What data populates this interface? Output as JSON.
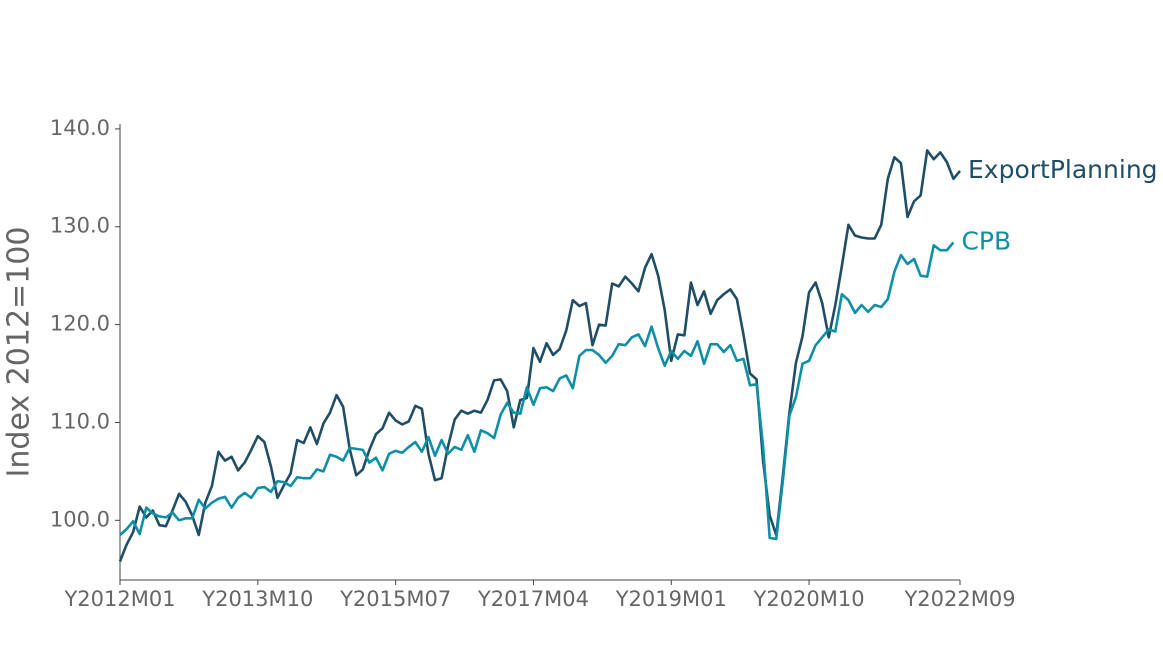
{
  "chart_data": {
    "type": "line",
    "y_label": "Index 2012=100",
    "categories": [
      "Y2012M01",
      null,
      null,
      null,
      null,
      null,
      null,
      null,
      null,
      null,
      null,
      null,
      null,
      null,
      null,
      null,
      null,
      null,
      null,
      null,
      null,
      "Y2013M10",
      null,
      null,
      null,
      null,
      null,
      null,
      null,
      null,
      null,
      null,
      null,
      null,
      null,
      null,
      null,
      null,
      null,
      null,
      null,
      null,
      "Y2015M07",
      null,
      null,
      null,
      null,
      null,
      null,
      null,
      null,
      null,
      null,
      null,
      null,
      null,
      null,
      null,
      null,
      null,
      null,
      null,
      null,
      "Y2017M04",
      null,
      null,
      null,
      null,
      null,
      null,
      null,
      null,
      null,
      null,
      null,
      null,
      null,
      null,
      null,
      null,
      null,
      null,
      null,
      null,
      "Y2019M01",
      null,
      null,
      null,
      null,
      null,
      null,
      null,
      null,
      null,
      null,
      null,
      null,
      null,
      null,
      null,
      null,
      null,
      null,
      null,
      null,
      "Y2020M10",
      null,
      null,
      null,
      null,
      null,
      null,
      null,
      null,
      null,
      null,
      null,
      null,
      null,
      null,
      null,
      null,
      null,
      null,
      null,
      null,
      null,
      null,
      "Y2022M09"
    ],
    "series": [
      {
        "name": "ExportPlanning",
        "color": "#1f4e66",
        "values": [
          95.8,
          97.5,
          98.8,
          101.4,
          100.3,
          101.0,
          99.5,
          99.4,
          101.0,
          102.7,
          101.9,
          100.5,
          98.5,
          101.8,
          103.5,
          107.0,
          106.1,
          106.5,
          105.1,
          105.9,
          107.2,
          108.6,
          108.0,
          105.5,
          102.3,
          103.6,
          104.8,
          108.2,
          107.9,
          109.5,
          107.8,
          109.9,
          111.0,
          112.8,
          111.6,
          107.3,
          104.6,
          105.2,
          107.2,
          108.8,
          109.4,
          111.0,
          110.2,
          109.8,
          110.1,
          111.7,
          111.4,
          106.8,
          104.1,
          104.3,
          107.6,
          110.3,
          111.2,
          110.9,
          111.2,
          111.0,
          112.3,
          114.3,
          114.4,
          113.2,
          109.5,
          112.3,
          112.5,
          117.6,
          116.2,
          118.1,
          116.9,
          117.5,
          119.4,
          122.5,
          121.9,
          122.2,
          117.9,
          120.0,
          119.9,
          124.2,
          123.9,
          124.9,
          124.2,
          123.4,
          125.8,
          127.2,
          125.0,
          121.5,
          116.3,
          119.0,
          118.9,
          124.3,
          122.0,
          123.4,
          121.1,
          122.5,
          123.1,
          123.6,
          122.6,
          119.0,
          115.0,
          114.4,
          106.0,
          100.5,
          98.5,
          104.5,
          111.0,
          116.1,
          118.8,
          123.3,
          124.3,
          122.2,
          118.7,
          122.0,
          126.0,
          130.2,
          129.1,
          128.9,
          128.8,
          128.8,
          130.2,
          134.9,
          137.1,
          136.5,
          131.0,
          132.6,
          133.2,
          137.8,
          136.9,
          137.6,
          136.6,
          134.9,
          135.7
        ]
      },
      {
        "name": "CPB",
        "color": "#0e8fa6",
        "values": [
          98.5,
          99.1,
          99.9,
          98.6,
          101.3,
          100.7,
          100.4,
          100.3,
          100.8,
          100.0,
          100.2,
          100.2,
          102.1,
          101.2,
          101.8,
          102.2,
          102.4,
          101.3,
          102.3,
          102.8,
          102.3,
          103.3,
          103.4,
          102.9,
          104.0,
          103.9,
          103.5,
          104.4,
          104.3,
          104.3,
          105.2,
          105.0,
          106.7,
          106.5,
          106.1,
          107.4,
          107.3,
          107.2,
          105.9,
          106.4,
          105.1,
          106.8,
          107.1,
          106.9,
          107.5,
          108.0,
          107.0,
          108.5,
          106.6,
          108.2,
          106.8,
          107.5,
          107.2,
          108.7,
          107.0,
          109.2,
          108.9,
          108.4,
          110.8,
          112.0,
          111.0,
          110.9,
          113.6,
          111.8,
          113.5,
          113.6,
          113.2,
          114.5,
          114.8,
          113.5,
          116.8,
          117.4,
          117.4,
          116.9,
          116.1,
          116.8,
          118.0,
          117.9,
          118.7,
          119.0,
          117.8,
          119.8,
          117.6,
          115.8,
          117.3,
          116.5,
          117.3,
          116.8,
          118.3,
          116.0,
          118.0,
          118.0,
          117.2,
          117.9,
          116.3,
          116.5,
          113.8,
          113.9,
          107.5,
          98.2,
          98.1,
          104.0,
          110.7,
          112.6,
          116.0,
          116.3,
          117.9,
          118.7,
          119.5,
          119.3,
          123.1,
          122.5,
          121.2,
          122.0,
          121.3,
          122.0,
          121.8,
          122.6,
          125.4,
          127.1,
          126.2,
          126.7,
          125.0,
          124.9,
          128.1,
          127.6,
          127.6,
          128.4,
          null
        ]
      }
    ],
    "ylim": [
      93.9,
      140.5
    ],
    "yticks": [
      {
        "value": 100,
        "label": "100.0"
      },
      {
        "value": 110,
        "label": "110.0"
      },
      {
        "value": 120,
        "label": "120.0"
      },
      {
        "value": 130,
        "label": "130.0"
      },
      {
        "value": 140,
        "label": "140.0"
      }
    ],
    "grid": false
  }
}
